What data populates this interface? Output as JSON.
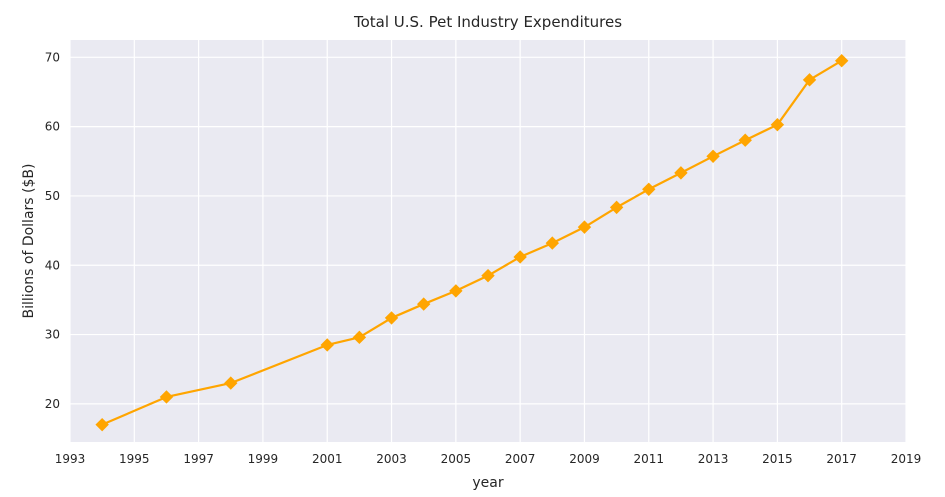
{
  "chart_data": {
    "type": "line",
    "title": "Total U.S. Pet Industry Expenditures",
    "xlabel": "year",
    "ylabel": "Billions of Dollars ($B)",
    "xlim": [
      1993,
      2019
    ],
    "ylim": [
      14.5,
      72.5
    ],
    "x_ticks": [
      1993,
      1995,
      1997,
      1999,
      2001,
      2003,
      2005,
      2007,
      2009,
      2011,
      2013,
      2015,
      2017,
      2019
    ],
    "y_ticks": [
      20,
      30,
      40,
      50,
      60,
      70
    ],
    "grid": true,
    "series": [
      {
        "x": [
          1994,
          1996,
          1998,
          2001,
          2002,
          2003,
          2004,
          2005,
          2006,
          2007,
          2008,
          2009,
          2010,
          2011,
          2012,
          2013,
          2014,
          2015,
          2016,
          2017
        ],
        "y": [
          17.0,
          21.0,
          23.0,
          28.5,
          29.6,
          32.4,
          34.4,
          36.3,
          38.5,
          41.2,
          43.2,
          45.5,
          48.35,
          50.96,
          53.33,
          55.72,
          58.04,
          60.28,
          66.75,
          69.51
        ],
        "color": "#FFA500",
        "marker": "diamond"
      }
    ]
  },
  "colors": {
    "plot_background": "#EAEAF2",
    "grid": "#FFFFFF",
    "text": "#262626"
  }
}
